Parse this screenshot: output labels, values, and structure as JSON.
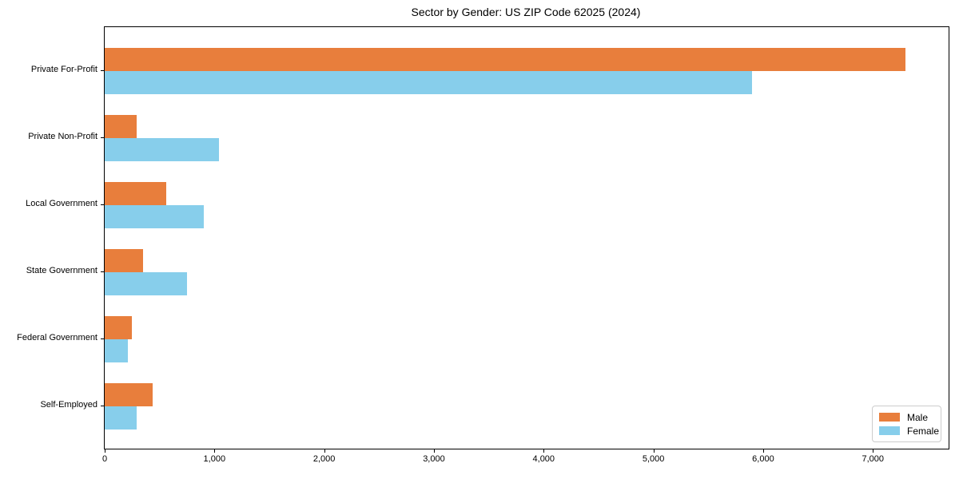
{
  "chart_data": {
    "type": "bar",
    "orientation": "horizontal",
    "title": "Sector by Gender: US ZIP Code 62025 (2024)",
    "categories": [
      "Private For-Profit",
      "Private Non-Profit",
      "Local Government",
      "State Government",
      "Federal Government",
      "Self-Employed"
    ],
    "series": [
      {
        "name": "Male",
        "color": "#E87E3C",
        "values": [
          7300,
          290,
          560,
          350,
          250,
          440
        ]
      },
      {
        "name": "Female",
        "color": "#87CEEB",
        "values": [
          5900,
          1040,
          900,
          750,
          210,
          290
        ]
      }
    ],
    "xlabel": "",
    "ylabel": "",
    "xlim": [
      0,
      7690
    ],
    "xticks": [
      0,
      1000,
      2000,
      3000,
      4000,
      5000,
      6000,
      7000
    ],
    "xtick_labels": [
      "0",
      "1,000",
      "2,000",
      "3,000",
      "4,000",
      "5,000",
      "6,000",
      "7,000"
    ],
    "grid": false,
    "legend_position": "lower right",
    "background_color": "#ffffff",
    "text_color": "#000000"
  }
}
